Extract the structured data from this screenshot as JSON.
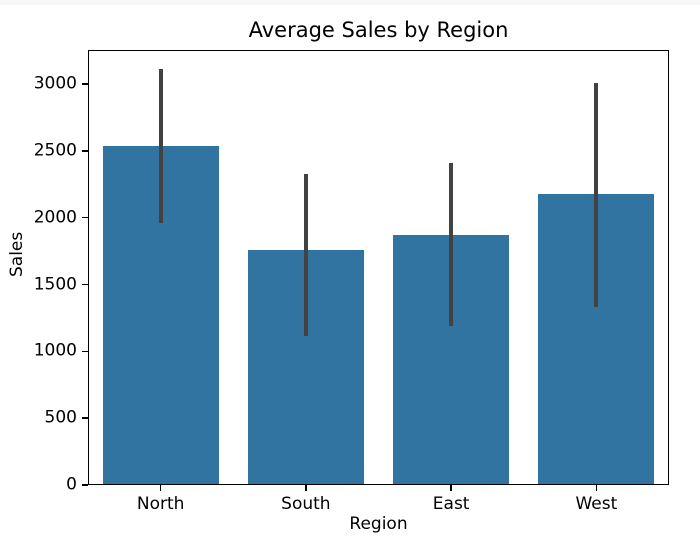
{
  "chart_data": {
    "type": "bar",
    "title": "Average Sales by Region",
    "xlabel": "Region",
    "ylabel": "Sales",
    "categories": [
      "North",
      "South",
      "East",
      "West"
    ],
    "values": [
      2535,
      1755,
      1870,
      2175
    ],
    "error_low": [
      1960,
      1115,
      1190,
      1330
    ],
    "error_high": [
      3115,
      2330,
      2410,
      3010
    ],
    "yticks": [
      0,
      500,
      1000,
      1500,
      2000,
      2500,
      3000
    ],
    "ylim": [
      0,
      3255
    ],
    "grid": "off",
    "legend": "none",
    "bar_color": "#3274a1",
    "errorbar_color": "#424242",
    "axis_color": "#000000",
    "background_color": "#ffffff"
  }
}
